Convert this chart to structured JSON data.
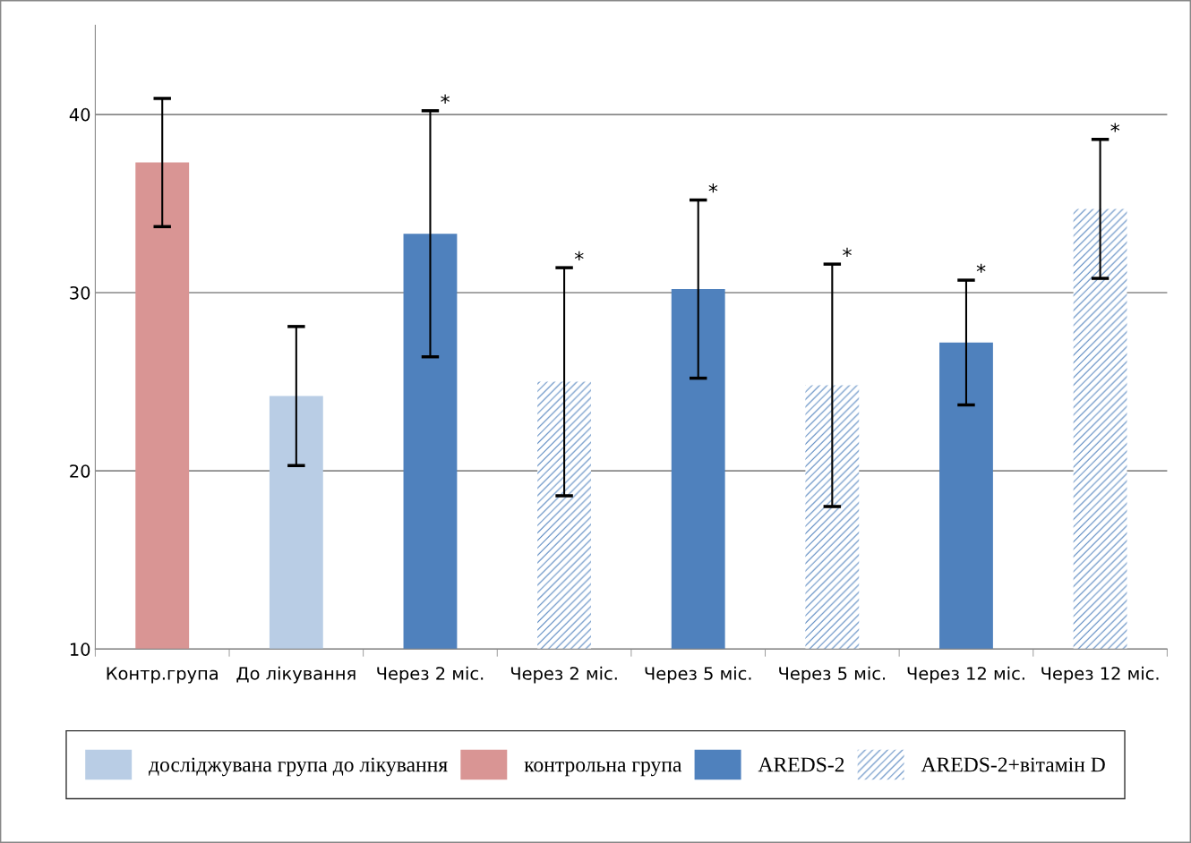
{
  "chart_data": {
    "type": "bar",
    "categories": [
      "Контр.група",
      "До лікування",
      "Через 2 міс.",
      "Через 2 міс.",
      "Через 5 міс.",
      "Через 5 міс.",
      "Через 12 міс.",
      "Через 12 міс."
    ],
    "series": [
      {
        "name": "досліджувана група до лікування",
        "color": "#b9cde5",
        "values": [
          null,
          24.2,
          null,
          null,
          null,
          null,
          null,
          null
        ],
        "errors": [
          null,
          3.9,
          null,
          null,
          null,
          null,
          null,
          null
        ]
      },
      {
        "name": "контрольна група",
        "color": "#d99594",
        "values": [
          37.3,
          null,
          null,
          null,
          null,
          null,
          null,
          null
        ],
        "errors": [
          3.6,
          null,
          null,
          null,
          null,
          null,
          null,
          null
        ]
      },
      {
        "name": "AREDS-2",
        "color": "#4f81bd",
        "values": [
          null,
          null,
          33.3,
          null,
          30.2,
          null,
          27.2,
          null
        ],
        "errors": [
          null,
          null,
          6.9,
          null,
          5.0,
          null,
          3.5,
          null
        ]
      },
      {
        "name": "AREDS-2+вітамін D",
        "color": "#4f81bd",
        "values": [
          null,
          null,
          null,
          25.0,
          null,
          24.8,
          null,
          34.7
        ],
        "errors": [
          null,
          null,
          null,
          6.4,
          null,
          6.8,
          null,
          3.9
        ]
      }
    ],
    "annotations": [
      "*",
      "*",
      "*",
      "*",
      "*",
      "*"
    ],
    "ylim": [
      10,
      45
    ],
    "yticks": [
      10,
      20,
      30,
      40
    ],
    "grid": "y",
    "legend": "bottom"
  }
}
